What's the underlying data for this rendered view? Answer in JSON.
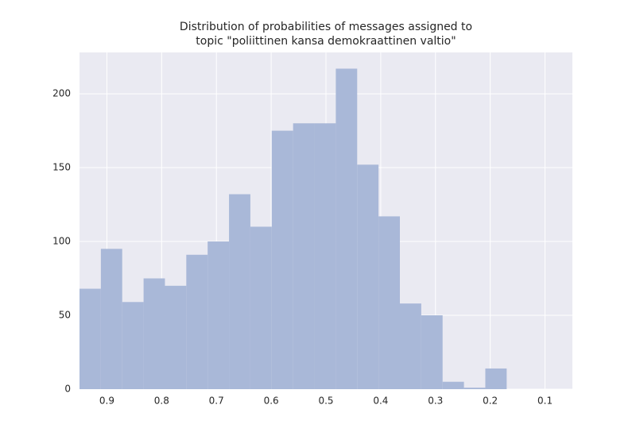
{
  "chart_data": {
    "type": "histogram",
    "title": [
      "Distribution of probabilities of messages assigned to",
      "topic \"poliittinen kansa demokraattinen valtio\""
    ],
    "bins": [
      0.95,
      0.911,
      0.872,
      0.833,
      0.794,
      0.755,
      0.716,
      0.677,
      0.638,
      0.599,
      0.56,
      0.521,
      0.482,
      0.443,
      0.404,
      0.365,
      0.326,
      0.287,
      0.248,
      0.209,
      0.17
    ],
    "values": [
      68,
      95,
      59,
      75,
      70,
      91,
      100,
      132,
      110,
      175,
      180,
      180,
      217,
      152,
      117,
      58,
      50,
      5,
      1,
      14
    ],
    "color": "#a9b8d8",
    "xlim": [
      0.95,
      0.05
    ],
    "xticks": [
      0.9,
      0.8,
      0.7,
      0.6,
      0.5,
      0.4,
      0.3,
      0.2,
      0.1
    ],
    "ylim": [
      0,
      228
    ],
    "yticks": [
      0,
      50,
      100,
      150,
      200
    ],
    "grid": true
  }
}
